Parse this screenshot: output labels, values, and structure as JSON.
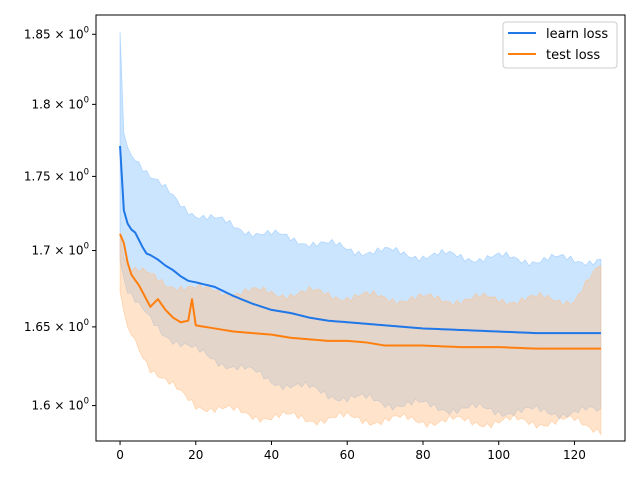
{
  "chart_data": {
    "type": "line",
    "title": "",
    "xlabel": "",
    "ylabel": "",
    "y_scale": "log",
    "xlim": [
      -6.35,
      133.35
    ],
    "ylim": [
      1.578,
      1.864
    ],
    "grid": false,
    "legend_position": "top-right",
    "x_ticks": [
      0,
      20,
      40,
      60,
      80,
      100,
      120
    ],
    "x_tick_labels": [
      "0",
      "20",
      "40",
      "60",
      "80",
      "100",
      "120"
    ],
    "y_ticks": [
      1.6,
      1.65,
      1.7,
      1.75,
      1.8,
      1.85
    ],
    "y_tick_labels": [
      {
        "base": "1.6",
        "exp": "0"
      },
      {
        "base": "1.65",
        "exp": "0"
      },
      {
        "base": "1.7",
        "exp": "0"
      },
      {
        "base": "1.75",
        "exp": "0"
      },
      {
        "base": "1.8",
        "exp": "0"
      },
      {
        "base": "1.85",
        "exp": "0"
      }
    ],
    "series": [
      {
        "name": "learn loss",
        "color": "#1f77e8",
        "band_color": "#8ec5ff",
        "mean_keypoints": [
          [
            0,
            1.771
          ],
          [
            1,
            1.727
          ],
          [
            2,
            1.718
          ],
          [
            3,
            1.714
          ],
          [
            4,
            1.712
          ],
          [
            5,
            1.707
          ],
          [
            6,
            1.702
          ],
          [
            7,
            1.698
          ],
          [
            8,
            1.697
          ],
          [
            10,
            1.694
          ],
          [
            12,
            1.69
          ],
          [
            14,
            1.687
          ],
          [
            16,
            1.683
          ],
          [
            18,
            1.68
          ],
          [
            20,
            1.679
          ],
          [
            25,
            1.676
          ],
          [
            30,
            1.67
          ],
          [
            35,
            1.665
          ],
          [
            40,
            1.661
          ],
          [
            45,
            1.659
          ],
          [
            50,
            1.656
          ],
          [
            55,
            1.654
          ],
          [
            60,
            1.653
          ],
          [
            65,
            1.652
          ],
          [
            70,
            1.651
          ],
          [
            80,
            1.649
          ],
          [
            90,
            1.648
          ],
          [
            100,
            1.647
          ],
          [
            110,
            1.646
          ],
          [
            120,
            1.646
          ],
          [
            127,
            1.646
          ]
        ],
        "upper_keypoints": [
          [
            0,
            1.852
          ],
          [
            1,
            1.78
          ],
          [
            2,
            1.77
          ],
          [
            5,
            1.761
          ],
          [
            8,
            1.75
          ],
          [
            12,
            1.74
          ],
          [
            16,
            1.731
          ],
          [
            20,
            1.725
          ],
          [
            30,
            1.716
          ],
          [
            40,
            1.71
          ],
          [
            50,
            1.706
          ],
          [
            60,
            1.701
          ],
          [
            70,
            1.699
          ],
          [
            80,
            1.697
          ],
          [
            90,
            1.696
          ],
          [
            100,
            1.695
          ],
          [
            110,
            1.694
          ],
          [
            120,
            1.694
          ],
          [
            127,
            1.694
          ]
        ],
        "lower_keypoints": [
          [
            0,
            1.693
          ],
          [
            1,
            1.682
          ],
          [
            2,
            1.672
          ],
          [
            5,
            1.662
          ],
          [
            8,
            1.655
          ],
          [
            12,
            1.646
          ],
          [
            16,
            1.639
          ],
          [
            20,
            1.634
          ],
          [
            30,
            1.625
          ],
          [
            40,
            1.616
          ],
          [
            50,
            1.61
          ],
          [
            60,
            1.605
          ],
          [
            70,
            1.602
          ],
          [
            80,
            1.6
          ],
          [
            90,
            1.598
          ],
          [
            100,
            1.597
          ],
          [
            110,
            1.596
          ],
          [
            120,
            1.596
          ],
          [
            127,
            1.596
          ]
        ]
      },
      {
        "name": "test loss",
        "color": "#ff7f0e",
        "band_color": "#ffc28a",
        "mean_keypoints": [
          [
            0,
            1.711
          ],
          [
            1,
            1.705
          ],
          [
            2,
            1.692
          ],
          [
            3,
            1.684
          ],
          [
            5,
            1.677
          ],
          [
            8,
            1.663
          ],
          [
            10,
            1.668
          ],
          [
            12,
            1.661
          ],
          [
            14,
            1.656
          ],
          [
            16,
            1.653
          ],
          [
            18,
            1.654
          ],
          [
            19,
            1.668
          ],
          [
            20,
            1.651
          ],
          [
            25,
            1.649
          ],
          [
            30,
            1.647
          ],
          [
            35,
            1.646
          ],
          [
            40,
            1.645
          ],
          [
            45,
            1.643
          ],
          [
            50,
            1.642
          ],
          [
            55,
            1.641
          ],
          [
            60,
            1.641
          ],
          [
            65,
            1.64
          ],
          [
            70,
            1.638
          ],
          [
            80,
            1.638
          ],
          [
            90,
            1.637
          ],
          [
            100,
            1.637
          ],
          [
            110,
            1.636
          ],
          [
            120,
            1.636
          ],
          [
            127,
            1.636
          ]
        ],
        "upper_keypoints": [
          [
            0,
            1.712
          ],
          [
            1,
            1.695
          ],
          [
            3,
            1.687
          ],
          [
            8,
            1.683
          ],
          [
            12,
            1.679
          ],
          [
            20,
            1.674
          ],
          [
            30,
            1.673
          ],
          [
            40,
            1.672
          ],
          [
            50,
            1.672
          ],
          [
            60,
            1.67
          ],
          [
            70,
            1.669
          ],
          [
            80,
            1.668
          ],
          [
            90,
            1.668
          ],
          [
            100,
            1.668
          ],
          [
            110,
            1.668
          ],
          [
            120,
            1.668
          ],
          [
            127,
            1.689
          ]
        ],
        "lower_keypoints": [
          [
            0,
            1.673
          ],
          [
            1,
            1.66
          ],
          [
            2,
            1.65
          ],
          [
            5,
            1.637
          ],
          [
            8,
            1.625
          ],
          [
            12,
            1.615
          ],
          [
            16,
            1.607
          ],
          [
            20,
            1.601
          ],
          [
            30,
            1.596
          ],
          [
            40,
            1.593
          ],
          [
            50,
            1.592
          ],
          [
            60,
            1.592
          ],
          [
            70,
            1.591
          ],
          [
            80,
            1.591
          ],
          [
            90,
            1.59
          ],
          [
            100,
            1.59
          ],
          [
            110,
            1.59
          ],
          [
            120,
            1.59
          ],
          [
            127,
            1.586
          ]
        ]
      }
    ]
  }
}
